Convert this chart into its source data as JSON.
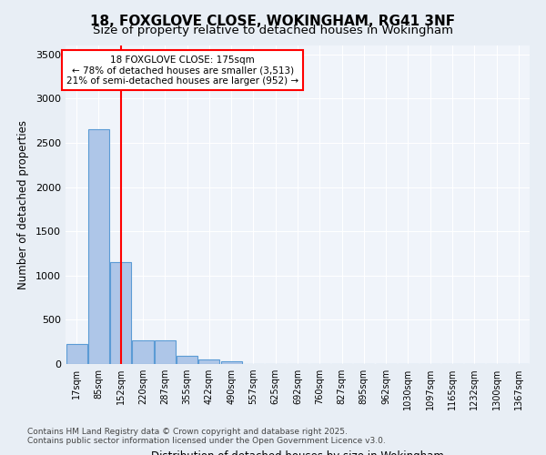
{
  "title_line1": "18, FOXGLOVE CLOSE, WOKINGHAM, RG41 3NF",
  "title_line2": "Size of property relative to detached houses in Wokingham",
  "xlabel": "Distribution of detached houses by size in Wokingham",
  "ylabel": "Number of detached properties",
  "annotation_line1": "18 FOXGLOVE CLOSE: 175sqm",
  "annotation_line2": "← 78% of detached houses are smaller (3,513)",
  "annotation_line3": "21% of semi-detached houses are larger (952) →",
  "footer_line1": "Contains HM Land Registry data © Crown copyright and database right 2025.",
  "footer_line2": "Contains public sector information licensed under the Open Government Licence v3.0.",
  "bin_labels": [
    "17sqm",
    "85sqm",
    "152sqm",
    "220sqm",
    "287sqm",
    "355sqm",
    "422sqm",
    "490sqm",
    "557sqm",
    "625sqm",
    "692sqm",
    "760sqm",
    "827sqm",
    "895sqm",
    "962sqm",
    "1030sqm",
    "1097sqm",
    "1165sqm",
    "1232sqm",
    "1300sqm",
    "1367sqm"
  ],
  "bar_values": [
    230,
    2650,
    1150,
    270,
    270,
    95,
    50,
    30,
    0,
    0,
    0,
    0,
    0,
    0,
    0,
    0,
    0,
    0,
    0,
    0,
    0
  ],
  "bar_color": "#aec6e8",
  "bar_edge_color": "#5b9bd5",
  "background_color": "#e8eef5",
  "plot_bg_color": "#f0f4fa",
  "grid_color": "#ffffff",
  "vline_x": 2,
  "vline_color": "red",
  "ylim": [
    0,
    3600
  ],
  "yticks": [
    0,
    500,
    1000,
    1500,
    2000,
    2500,
    3000,
    3500
  ]
}
